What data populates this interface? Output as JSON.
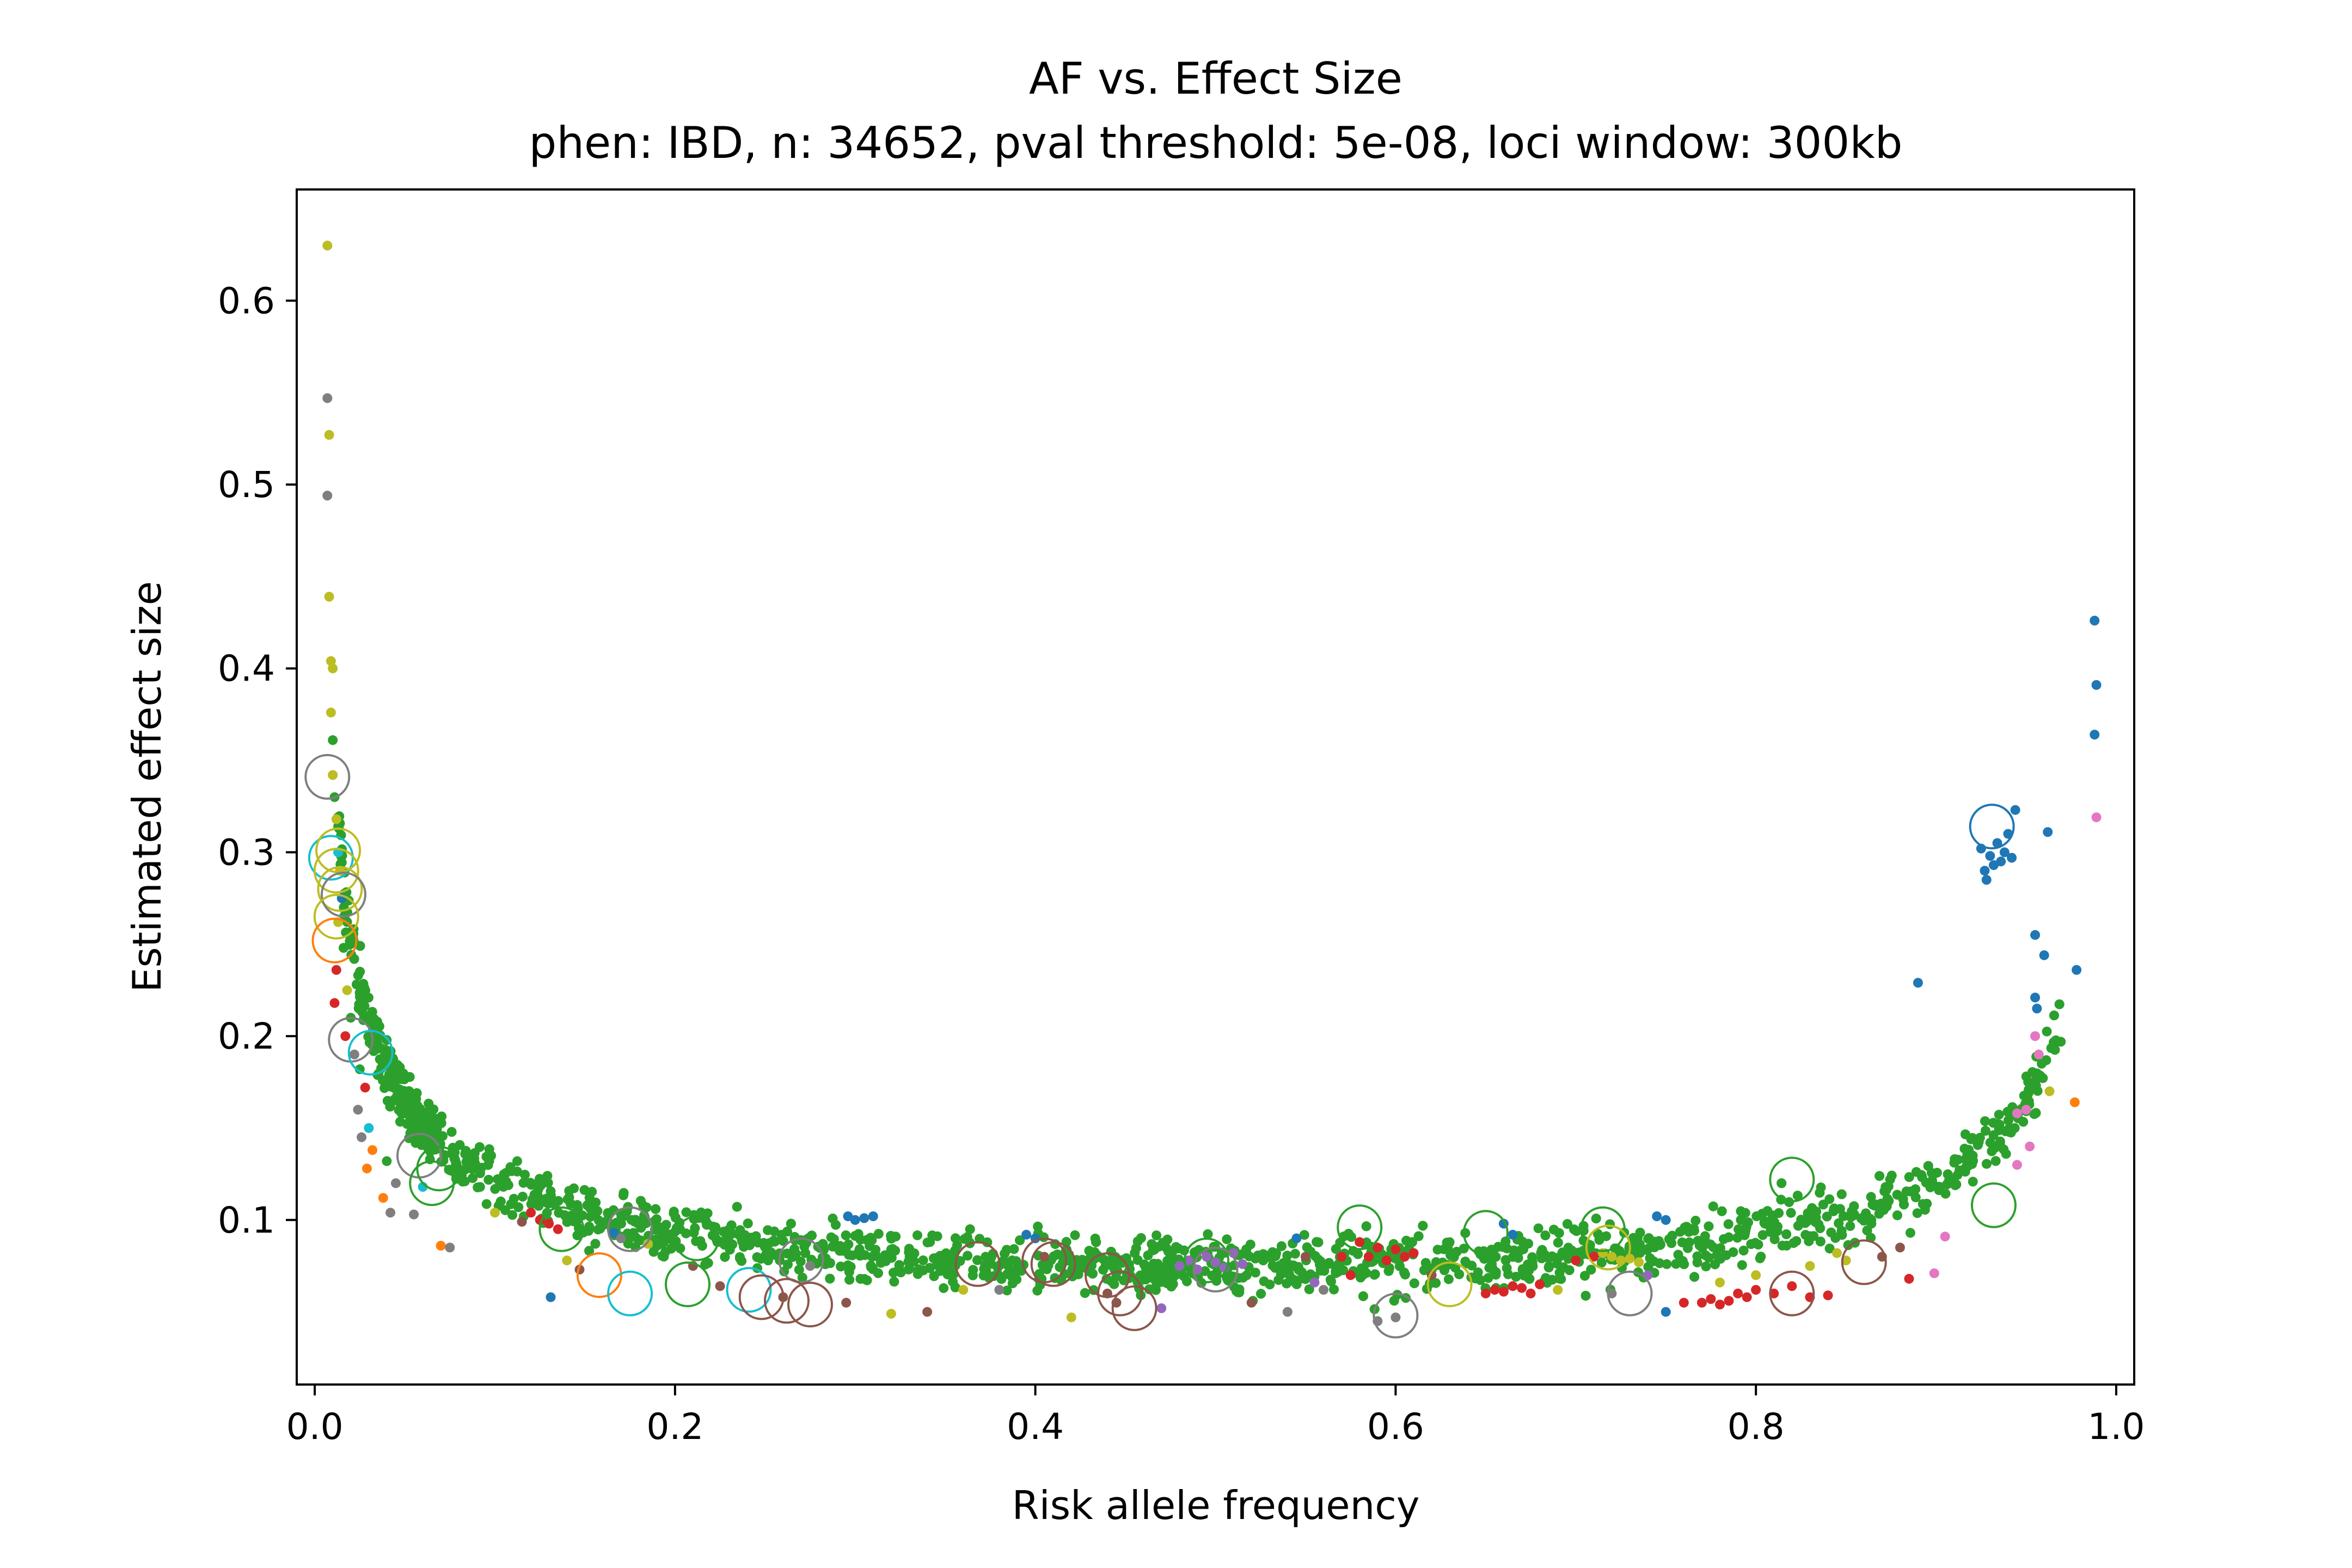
{
  "chart_data": {
    "type": "scatter",
    "title": "AF vs. Effect Size",
    "subtitle": "phen: IBD, n: 34652, pval threshold: 5e-08, loci window: 300kb",
    "xlabel": "Risk allele frequency",
    "ylabel": "Estimated effect size",
    "xlim": [
      -0.01,
      1.01
    ],
    "ylim": [
      0.0105,
      0.6605
    ],
    "xticks": [
      0.0,
      0.2,
      0.4,
      0.6,
      0.8,
      1.0
    ],
    "xtick_labels": [
      "0.0",
      "0.2",
      "0.4",
      "0.6",
      "0.8",
      "1.0"
    ],
    "yticks": [
      0.1,
      0.2,
      0.3,
      0.4,
      0.5,
      0.6
    ],
    "ytick_labels": [
      "0.1",
      "0.2",
      "0.3",
      "0.4",
      "0.5",
      "0.6"
    ],
    "grid": false,
    "legend": "none",
    "colors": {
      "blue": "#1f77b4",
      "orange": "#ff7f0e",
      "green": "#2ca02c",
      "red": "#d62728",
      "purple": "#9467bd",
      "brown": "#8c564b",
      "pink": "#e377c2",
      "gray": "#7f7f7f",
      "olive": "#bcbd22",
      "cyan": "#17becf"
    },
    "dense_band": {
      "color": "green",
      "point_count": 2600,
      "description_curve": "effect size roughly proportional to 1/sqrt(f(1-f))"
    },
    "points": [
      {
        "x": 0.007,
        "y": 0.63,
        "color": "olive"
      },
      {
        "x": 0.007,
        "y": 0.547,
        "color": "gray"
      },
      {
        "x": 0.008,
        "y": 0.527,
        "color": "olive"
      },
      {
        "x": 0.007,
        "y": 0.494,
        "color": "gray"
      },
      {
        "x": 0.008,
        "y": 0.439,
        "color": "olive"
      },
      {
        "x": 0.009,
        "y": 0.404,
        "color": "olive"
      },
      {
        "x": 0.01,
        "y": 0.4,
        "color": "olive"
      },
      {
        "x": 0.009,
        "y": 0.376,
        "color": "olive"
      },
      {
        "x": 0.01,
        "y": 0.361,
        "color": "green"
      },
      {
        "x": 0.01,
        "y": 0.342,
        "color": "olive"
      },
      {
        "x": 0.011,
        "y": 0.33,
        "color": "green"
      },
      {
        "x": 0.012,
        "y": 0.318,
        "color": "olive"
      },
      {
        "x": 0.013,
        "y": 0.3,
        "color": "cyan"
      },
      {
        "x": 0.014,
        "y": 0.29,
        "color": "olive"
      },
      {
        "x": 0.015,
        "y": 0.275,
        "color": "blue"
      },
      {
        "x": 0.013,
        "y": 0.262,
        "color": "olive"
      },
      {
        "x": 0.016,
        "y": 0.248,
        "color": "green"
      },
      {
        "x": 0.012,
        "y": 0.236,
        "color": "red"
      },
      {
        "x": 0.018,
        "y": 0.225,
        "color": "olive"
      },
      {
        "x": 0.011,
        "y": 0.218,
        "color": "red"
      },
      {
        "x": 0.02,
        "y": 0.21,
        "color": "green"
      },
      {
        "x": 0.017,
        "y": 0.2,
        "color": "red"
      },
      {
        "x": 0.022,
        "y": 0.19,
        "color": "gray"
      },
      {
        "x": 0.025,
        "y": 0.182,
        "color": "green"
      },
      {
        "x": 0.028,
        "y": 0.172,
        "color": "red"
      },
      {
        "x": 0.024,
        "y": 0.16,
        "color": "gray"
      },
      {
        "x": 0.03,
        "y": 0.15,
        "color": "cyan"
      },
      {
        "x": 0.026,
        "y": 0.145,
        "color": "gray"
      },
      {
        "x": 0.032,
        "y": 0.138,
        "color": "orange"
      },
      {
        "x": 0.029,
        "y": 0.128,
        "color": "orange"
      },
      {
        "x": 0.04,
        "y": 0.132,
        "color": "green"
      },
      {
        "x": 0.045,
        "y": 0.12,
        "color": "gray"
      },
      {
        "x": 0.038,
        "y": 0.112,
        "color": "orange"
      },
      {
        "x": 0.042,
        "y": 0.104,
        "color": "gray"
      },
      {
        "x": 0.055,
        "y": 0.103,
        "color": "gray"
      },
      {
        "x": 0.06,
        "y": 0.118,
        "color": "cyan"
      },
      {
        "x": 0.07,
        "y": 0.086,
        "color": "orange"
      },
      {
        "x": 0.075,
        "y": 0.085,
        "color": "gray"
      },
      {
        "x": 0.1,
        "y": 0.104,
        "color": "olive"
      },
      {
        "x": 0.115,
        "y": 0.099,
        "color": "brown"
      },
      {
        "x": 0.12,
        "y": 0.104,
        "color": "red"
      },
      {
        "x": 0.125,
        "y": 0.1,
        "color": "red"
      },
      {
        "x": 0.13,
        "y": 0.098,
        "color": "red"
      },
      {
        "x": 0.135,
        "y": 0.095,
        "color": "red"
      },
      {
        "x": 0.14,
        "y": 0.078,
        "color": "olive"
      },
      {
        "x": 0.147,
        "y": 0.073,
        "color": "brown"
      },
      {
        "x": 0.131,
        "y": 0.058,
        "color": "blue"
      },
      {
        "x": 0.166,
        "y": 0.093,
        "color": "blue"
      },
      {
        "x": 0.17,
        "y": 0.09,
        "color": "gray"
      },
      {
        "x": 0.185,
        "y": 0.087,
        "color": "olive"
      },
      {
        "x": 0.21,
        "y": 0.075,
        "color": "brown"
      },
      {
        "x": 0.225,
        "y": 0.064,
        "color": "brown"
      },
      {
        "x": 0.26,
        "y": 0.058,
        "color": "brown"
      },
      {
        "x": 0.275,
        "y": 0.075,
        "color": "gray"
      },
      {
        "x": 0.296,
        "y": 0.102,
        "color": "blue"
      },
      {
        "x": 0.3,
        "y": 0.1,
        "color": "blue"
      },
      {
        "x": 0.305,
        "y": 0.101,
        "color": "blue"
      },
      {
        "x": 0.31,
        "y": 0.102,
        "color": "blue"
      },
      {
        "x": 0.295,
        "y": 0.055,
        "color": "brown"
      },
      {
        "x": 0.32,
        "y": 0.049,
        "color": "olive"
      },
      {
        "x": 0.34,
        "y": 0.05,
        "color": "brown"
      },
      {
        "x": 0.36,
        "y": 0.062,
        "color": "olive"
      },
      {
        "x": 0.38,
        "y": 0.062,
        "color": "gray"
      },
      {
        "x": 0.395,
        "y": 0.092,
        "color": "blue"
      },
      {
        "x": 0.4,
        "y": 0.09,
        "color": "blue"
      },
      {
        "x": 0.405,
        "y": 0.08,
        "color": "brown"
      },
      {
        "x": 0.42,
        "y": 0.047,
        "color": "olive"
      },
      {
        "x": 0.44,
        "y": 0.06,
        "color": "brown"
      },
      {
        "x": 0.445,
        "y": 0.055,
        "color": "brown"
      },
      {
        "x": 0.47,
        "y": 0.052,
        "color": "purple"
      },
      {
        "x": 0.48,
        "y": 0.075,
        "color": "purple"
      },
      {
        "x": 0.485,
        "y": 0.078,
        "color": "purple"
      },
      {
        "x": 0.49,
        "y": 0.073,
        "color": "purple"
      },
      {
        "x": 0.495,
        "y": 0.08,
        "color": "purple"
      },
      {
        "x": 0.5,
        "y": 0.077,
        "color": "purple"
      },
      {
        "x": 0.505,
        "y": 0.074,
        "color": "purple"
      },
      {
        "x": 0.51,
        "y": 0.082,
        "color": "purple"
      },
      {
        "x": 0.515,
        "y": 0.076,
        "color": "purple"
      },
      {
        "x": 0.52,
        "y": 0.055,
        "color": "brown"
      },
      {
        "x": 0.54,
        "y": 0.05,
        "color": "gray"
      },
      {
        "x": 0.545,
        "y": 0.09,
        "color": "blue"
      },
      {
        "x": 0.55,
        "y": 0.08,
        "color": "brown"
      },
      {
        "x": 0.555,
        "y": 0.066,
        "color": "purple"
      },
      {
        "x": 0.56,
        "y": 0.062,
        "color": "gray"
      },
      {
        "x": 0.57,
        "y": 0.08,
        "color": "red"
      },
      {
        "x": 0.575,
        "y": 0.07,
        "color": "red"
      },
      {
        "x": 0.58,
        "y": 0.088,
        "color": "red"
      },
      {
        "x": 0.585,
        "y": 0.08,
        "color": "red"
      },
      {
        "x": 0.59,
        "y": 0.085,
        "color": "red"
      },
      {
        "x": 0.595,
        "y": 0.078,
        "color": "red"
      },
      {
        "x": 0.6,
        "y": 0.084,
        "color": "red"
      },
      {
        "x": 0.605,
        "y": 0.08,
        "color": "red"
      },
      {
        "x": 0.61,
        "y": 0.082,
        "color": "red"
      },
      {
        "x": 0.59,
        "y": 0.045,
        "color": "gray"
      },
      {
        "x": 0.6,
        "y": 0.047,
        "color": "gray"
      },
      {
        "x": 0.62,
        "y": 0.07,
        "color": "brown"
      },
      {
        "x": 0.65,
        "y": 0.06,
        "color": "red"
      },
      {
        "x": 0.655,
        "y": 0.062,
        "color": "red"
      },
      {
        "x": 0.66,
        "y": 0.061,
        "color": "red"
      },
      {
        "x": 0.665,
        "y": 0.064,
        "color": "red"
      },
      {
        "x": 0.67,
        "y": 0.063,
        "color": "red"
      },
      {
        "x": 0.675,
        "y": 0.06,
        "color": "red"
      },
      {
        "x": 0.68,
        "y": 0.065,
        "color": "red"
      },
      {
        "x": 0.69,
        "y": 0.062,
        "color": "olive"
      },
      {
        "x": 0.66,
        "y": 0.098,
        "color": "blue"
      },
      {
        "x": 0.665,
        "y": 0.092,
        "color": "blue"
      },
      {
        "x": 0.7,
        "y": 0.078,
        "color": "red"
      },
      {
        "x": 0.71,
        "y": 0.08,
        "color": "red"
      },
      {
        "x": 0.715,
        "y": 0.082,
        "color": "olive"
      },
      {
        "x": 0.72,
        "y": 0.08,
        "color": "olive"
      },
      {
        "x": 0.725,
        "y": 0.078,
        "color": "olive"
      },
      {
        "x": 0.73,
        "y": 0.079,
        "color": "olive"
      },
      {
        "x": 0.735,
        "y": 0.077,
        "color": "olive"
      },
      {
        "x": 0.74,
        "y": 0.07,
        "color": "purple"
      },
      {
        "x": 0.72,
        "y": 0.06,
        "color": "gray"
      },
      {
        "x": 0.75,
        "y": 0.05,
        "color": "blue"
      },
      {
        "x": 0.745,
        "y": 0.102,
        "color": "blue"
      },
      {
        "x": 0.75,
        "y": 0.1,
        "color": "blue"
      },
      {
        "x": 0.76,
        "y": 0.055,
        "color": "red"
      },
      {
        "x": 0.77,
        "y": 0.055,
        "color": "red"
      },
      {
        "x": 0.775,
        "y": 0.057,
        "color": "red"
      },
      {
        "x": 0.78,
        "y": 0.054,
        "color": "red"
      },
      {
        "x": 0.785,
        "y": 0.056,
        "color": "red"
      },
      {
        "x": 0.79,
        "y": 0.06,
        "color": "red"
      },
      {
        "x": 0.795,
        "y": 0.058,
        "color": "red"
      },
      {
        "x": 0.8,
        "y": 0.062,
        "color": "red"
      },
      {
        "x": 0.81,
        "y": 0.06,
        "color": "red"
      },
      {
        "x": 0.82,
        "y": 0.064,
        "color": "red"
      },
      {
        "x": 0.83,
        "y": 0.058,
        "color": "red"
      },
      {
        "x": 0.84,
        "y": 0.059,
        "color": "red"
      },
      {
        "x": 0.78,
        "y": 0.066,
        "color": "olive"
      },
      {
        "x": 0.8,
        "y": 0.07,
        "color": "olive"
      },
      {
        "x": 0.83,
        "y": 0.075,
        "color": "olive"
      },
      {
        "x": 0.85,
        "y": 0.078,
        "color": "olive"
      },
      {
        "x": 0.845,
        "y": 0.082,
        "color": "olive"
      },
      {
        "x": 0.87,
        "y": 0.08,
        "color": "brown"
      },
      {
        "x": 0.88,
        "y": 0.085,
        "color": "brown"
      },
      {
        "x": 0.885,
        "y": 0.068,
        "color": "red"
      },
      {
        "x": 0.899,
        "y": 0.071,
        "color": "pink"
      },
      {
        "x": 0.89,
        "y": 0.229,
        "color": "blue"
      },
      {
        "x": 0.905,
        "y": 0.091,
        "color": "pink"
      },
      {
        "x": 0.925,
        "y": 0.302,
        "color": "blue"
      },
      {
        "x": 0.927,
        "y": 0.29,
        "color": "blue"
      },
      {
        "x": 0.928,
        "y": 0.285,
        "color": "blue"
      },
      {
        "x": 0.93,
        "y": 0.298,
        "color": "blue"
      },
      {
        "x": 0.932,
        "y": 0.293,
        "color": "blue"
      },
      {
        "x": 0.934,
        "y": 0.305,
        "color": "blue"
      },
      {
        "x": 0.936,
        "y": 0.295,
        "color": "blue"
      },
      {
        "x": 0.938,
        "y": 0.3,
        "color": "blue"
      },
      {
        "x": 0.94,
        "y": 0.31,
        "color": "blue"
      },
      {
        "x": 0.942,
        "y": 0.297,
        "color": "blue"
      },
      {
        "x": 0.944,
        "y": 0.323,
        "color": "blue"
      },
      {
        "x": 0.945,
        "y": 0.13,
        "color": "pink"
      },
      {
        "x": 0.945,
        "y": 0.158,
        "color": "pink"
      },
      {
        "x": 0.95,
        "y": 0.16,
        "color": "pink"
      },
      {
        "x": 0.952,
        "y": 0.14,
        "color": "pink"
      },
      {
        "x": 0.955,
        "y": 0.2,
        "color": "pink"
      },
      {
        "x": 0.957,
        "y": 0.19,
        "color": "pink"
      },
      {
        "x": 0.955,
        "y": 0.221,
        "color": "blue"
      },
      {
        "x": 0.956,
        "y": 0.215,
        "color": "blue"
      },
      {
        "x": 0.955,
        "y": 0.255,
        "color": "blue"
      },
      {
        "x": 0.96,
        "y": 0.244,
        "color": "blue"
      },
      {
        "x": 0.962,
        "y": 0.311,
        "color": "blue"
      },
      {
        "x": 0.963,
        "y": 0.17,
        "color": "olive"
      },
      {
        "x": 0.977,
        "y": 0.164,
        "color": "orange"
      },
      {
        "x": 0.978,
        "y": 0.236,
        "color": "blue"
      },
      {
        "x": 0.988,
        "y": 0.426,
        "color": "blue"
      },
      {
        "x": 0.989,
        "y": 0.391,
        "color": "blue"
      },
      {
        "x": 0.988,
        "y": 0.364,
        "color": "blue"
      },
      {
        "x": 0.989,
        "y": 0.319,
        "color": "pink"
      }
    ],
    "circled": [
      {
        "x": 0.007,
        "y": 0.341,
        "color": "gray"
      },
      {
        "x": 0.009,
        "y": 0.297,
        "color": "cyan"
      },
      {
        "x": 0.013,
        "y": 0.301,
        "color": "olive"
      },
      {
        "x": 0.012,
        "y": 0.29,
        "color": "olive"
      },
      {
        "x": 0.014,
        "y": 0.28,
        "color": "olive"
      },
      {
        "x": 0.016,
        "y": 0.277,
        "color": "gray"
      },
      {
        "x": 0.012,
        "y": 0.265,
        "color": "olive"
      },
      {
        "x": 0.011,
        "y": 0.252,
        "color": "orange"
      },
      {
        "x": 0.02,
        "y": 0.198,
        "color": "gray"
      },
      {
        "x": 0.031,
        "y": 0.191,
        "color": "cyan"
      },
      {
        "x": 0.058,
        "y": 0.135,
        "color": "gray"
      },
      {
        "x": 0.069,
        "y": 0.128,
        "color": "green"
      },
      {
        "x": 0.065,
        "y": 0.12,
        "color": "green"
      },
      {
        "x": 0.137,
        "y": 0.095,
        "color": "green"
      },
      {
        "x": 0.158,
        "y": 0.07,
        "color": "orange"
      },
      {
        "x": 0.175,
        "y": 0.095,
        "color": "gray"
      },
      {
        "x": 0.175,
        "y": 0.06,
        "color": "cyan"
      },
      {
        "x": 0.207,
        "y": 0.065,
        "color": "green"
      },
      {
        "x": 0.212,
        "y": 0.09,
        "color": "green"
      },
      {
        "x": 0.241,
        "y": 0.062,
        "color": "cyan"
      },
      {
        "x": 0.248,
        "y": 0.058,
        "color": "brown"
      },
      {
        "x": 0.27,
        "y": 0.078,
        "color": "gray"
      },
      {
        "x": 0.275,
        "y": 0.054,
        "color": "brown"
      },
      {
        "x": 0.262,
        "y": 0.056,
        "color": "brown"
      },
      {
        "x": 0.368,
        "y": 0.076,
        "color": "brown"
      },
      {
        "x": 0.405,
        "y": 0.078,
        "color": "brown"
      },
      {
        "x": 0.41,
        "y": 0.076,
        "color": "brown"
      },
      {
        "x": 0.44,
        "y": 0.07,
        "color": "brown"
      },
      {
        "x": 0.447,
        "y": 0.06,
        "color": "brown"
      },
      {
        "x": 0.455,
        "y": 0.052,
        "color": "brown"
      },
      {
        "x": 0.495,
        "y": 0.078,
        "color": "green"
      },
      {
        "x": 0.5,
        "y": 0.073,
        "color": "gray"
      },
      {
        "x": 0.58,
        "y": 0.096,
        "color": "green"
      },
      {
        "x": 0.6,
        "y": 0.048,
        "color": "gray"
      },
      {
        "x": 0.63,
        "y": 0.065,
        "color": "olive"
      },
      {
        "x": 0.65,
        "y": 0.093,
        "color": "green"
      },
      {
        "x": 0.715,
        "y": 0.095,
        "color": "green"
      },
      {
        "x": 0.718,
        "y": 0.085,
        "color": "olive"
      },
      {
        "x": 0.73,
        "y": 0.06,
        "color": "gray"
      },
      {
        "x": 0.82,
        "y": 0.06,
        "color": "brown"
      },
      {
        "x": 0.82,
        "y": 0.122,
        "color": "green"
      },
      {
        "x": 0.86,
        "y": 0.077,
        "color": "brown"
      },
      {
        "x": 0.931,
        "y": 0.314,
        "color": "blue"
      },
      {
        "x": 0.932,
        "y": 0.108,
        "color": "green"
      }
    ]
  }
}
